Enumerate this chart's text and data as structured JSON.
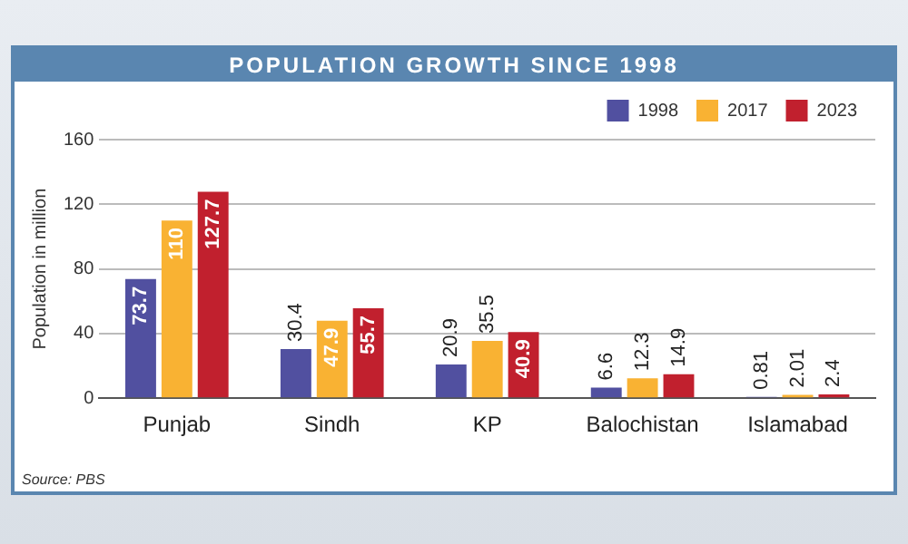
{
  "chart_data": {
    "type": "bar",
    "title": "POPULATION GROWTH SINCE 1998",
    "ylabel": "Population in million",
    "categories": [
      "Punjab",
      "Sindh",
      "KP",
      "Balochistan",
      "Islamabad"
    ],
    "series": [
      {
        "name": "1998",
        "color": "#5150a0",
        "values": [
          73.7,
          30.4,
          20.9,
          6.6,
          0.81
        ]
      },
      {
        "name": "2017",
        "color": "#f9b233",
        "values": [
          110,
          47.9,
          35.5,
          12.3,
          2.01
        ]
      },
      {
        "name": "2023",
        "color": "#c1202e",
        "values": [
          127.7,
          55.7,
          40.9,
          14.9,
          2.4
        ]
      }
    ],
    "ylim": [
      0,
      160
    ],
    "yticks": [
      0,
      40,
      80,
      120,
      160
    ],
    "grid": "y",
    "legend": "top right",
    "data_labels": true,
    "annotations": [
      "Source: PBS"
    ]
  }
}
